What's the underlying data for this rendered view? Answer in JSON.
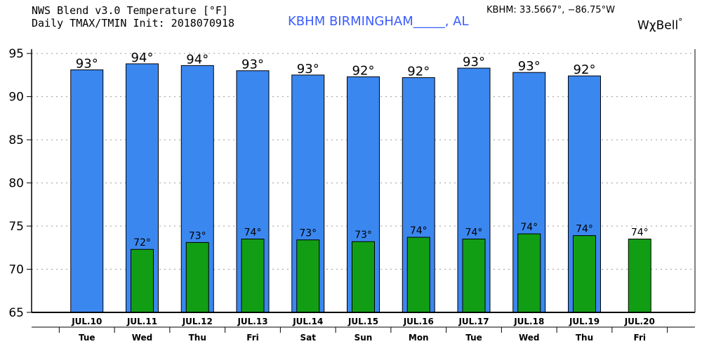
{
  "header": {
    "title_line1": "NWS Blend v3.0 Temperature [°F]",
    "title_line2": "Daily TMAX/TMIN Init: 2018070918",
    "station": "KBHM BIRMINGHAM_____, AL",
    "coords": "KBHM: 33.5667°, −86.75°W",
    "brand": "WχBell",
    "brand_mark": "°"
  },
  "colors": {
    "tmax": "#3b87f0",
    "tmin": "#129e14",
    "grid": "#999999",
    "station": "#3a5cff"
  },
  "chart_data": {
    "type": "bar",
    "title": "NWS Blend v3.0 Temperature [°F] Daily TMAX/TMIN",
    "xlabel": "",
    "ylabel": "",
    "ylim": [
      65,
      95.5
    ],
    "yticks": [
      65,
      70,
      75,
      80,
      85,
      90,
      95
    ],
    "grid": true,
    "categories": [
      "JUL.10",
      "JUL.11",
      "JUL.12",
      "JUL.13",
      "JUL.14",
      "JUL.15",
      "JUL.16",
      "JUL.17",
      "JUL.18",
      "JUL.19",
      "JUL.20"
    ],
    "weekdays": [
      "Tue",
      "Wed",
      "Thu",
      "Fri",
      "Sat",
      "Sun",
      "Mon",
      "Tue",
      "Wed",
      "Thu",
      "Fri"
    ],
    "series": [
      {
        "name": "TMAX",
        "values": [
          93.1,
          93.8,
          93.6,
          93.0,
          92.5,
          92.3,
          92.2,
          93.3,
          92.8,
          92.4,
          null
        ],
        "labels": [
          "93°",
          "94°",
          "94°",
          "93°",
          "93°",
          "92°",
          "92°",
          "93°",
          "93°",
          "92°",
          null
        ]
      },
      {
        "name": "TMIN",
        "values": [
          null,
          72.3,
          73.1,
          73.5,
          73.4,
          73.2,
          73.7,
          73.5,
          74.1,
          73.9,
          73.5
        ],
        "labels": [
          null,
          "72°",
          "73°",
          "74°",
          "73°",
          "73°",
          "74°",
          "74°",
          "74°",
          "74°",
          "74°"
        ]
      }
    ]
  }
}
